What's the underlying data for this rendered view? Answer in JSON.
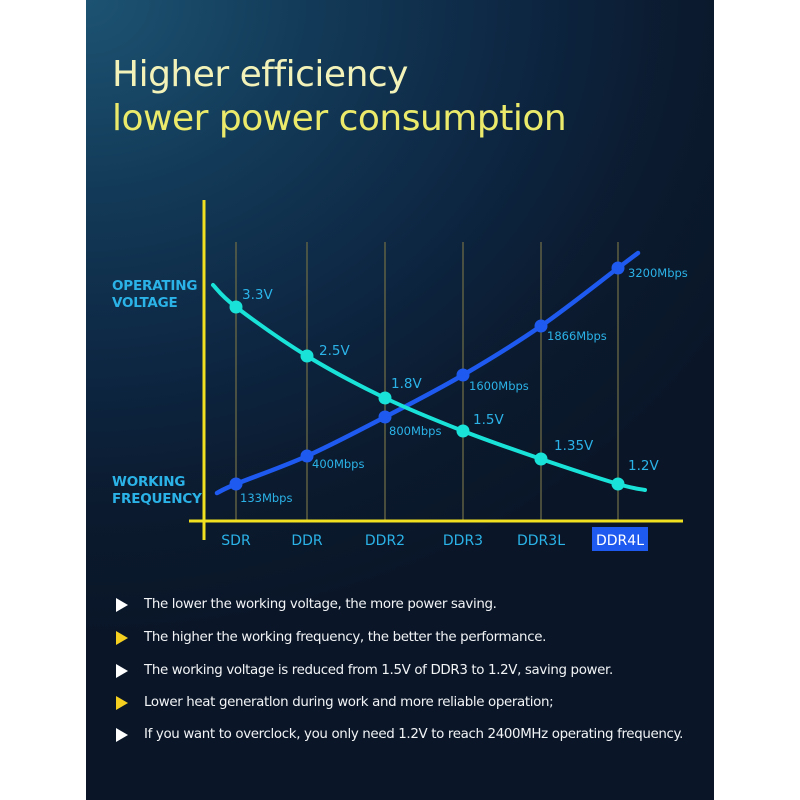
{
  "header": {
    "title_line1": "Higher efficiency",
    "title_line2": "lower power consumption"
  },
  "chart_data": {
    "type": "line",
    "categories": [
      "SDR",
      "DDR",
      "DDR2",
      "DDR3",
      "DDR3L",
      "DDR4L"
    ],
    "highlighted_category": "DDR4L",
    "y_axis_labels": {
      "voltage": [
        "OPERATING",
        "VOLTAGE"
      ],
      "frequency": [
        "WORKING",
        "FREQUENCY"
      ]
    },
    "series": [
      {
        "name": "Operating Voltage",
        "unit": "V",
        "values": [
          3.3,
          2.5,
          1.8,
          1.5,
          1.35,
          1.2
        ],
        "labels": [
          "3.3V",
          "2.5V",
          "1.8V",
          "1.5V",
          "1.35V",
          "1.2V"
        ],
        "color": "#19e3d8"
      },
      {
        "name": "Working Frequency",
        "unit": "Mbps",
        "values": [
          133,
          400,
          800,
          1600,
          1866,
          3200
        ],
        "labels": [
          "133Mbps",
          "400Mbps",
          "800Mbps",
          "1600Mbps",
          "1866Mbps",
          "3200Mbps"
        ],
        "color": "#1f5af0"
      }
    ],
    "axis_color": "#f0e020",
    "gridline_color": "#6b6a45",
    "label_color": "#2bb3e8",
    "grid": true
  },
  "bullets": [
    {
      "text": "The lower the working voltage, the more power saving.",
      "color": "white"
    },
    {
      "text": "The higher the working frequency, the better the performance.",
      "color": "yellow"
    },
    {
      "text": "The working voltage is reduced from 1.5V of DDR3 to 1.2V, saving power.",
      "color": "white"
    },
    {
      "text": "Lower heat generatlon during work and more reliable operation;",
      "color": "yellow"
    },
    {
      "text": "If you want to overclock, you only need 1.2V to reach 2400MHz operating frequency.",
      "color": "white"
    }
  ]
}
